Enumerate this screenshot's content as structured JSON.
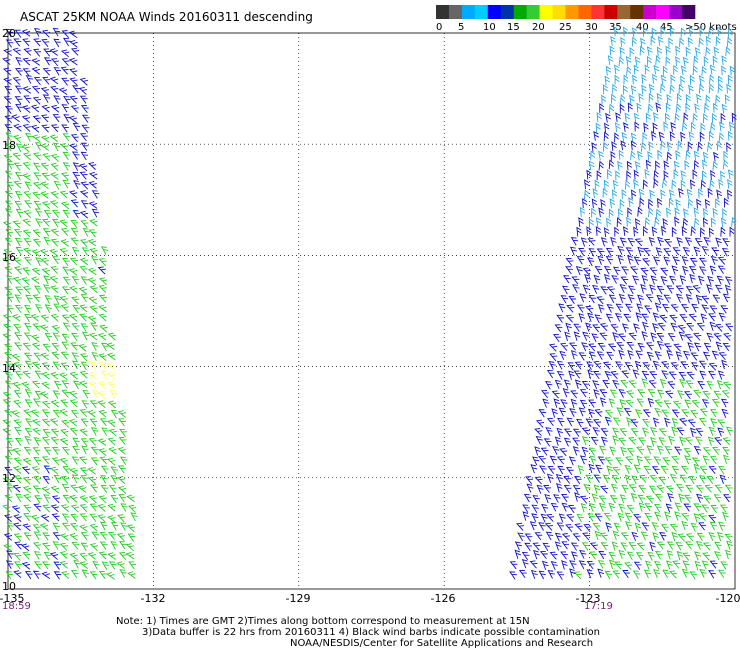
{
  "title": "ASCAT 25KM NOAA Winds 20160311 descending",
  "color_scale": {
    "colors": [
      "#333333",
      "#666666",
      "#00aaff",
      "#00ccff",
      "#0000ff",
      "#0033aa",
      "#00aa00",
      "#33cc33",
      "#ffff00",
      "#ffdd00",
      "#ff9900",
      "#ff6600",
      "#ff3333",
      "#cc0000",
      "#996633",
      "#663300",
      "#cc00cc",
      "#ff00ff",
      "#9900cc",
      "#440066"
    ],
    "labels": [
      "0",
      "5",
      "10",
      "15",
      "20",
      "25",
      "30",
      "35",
      "40",
      "45",
      ">50 knots"
    ]
  },
  "latitudes": [
    "20",
    "18",
    "16",
    "14",
    "12",
    "10"
  ],
  "longitudes": [
    "-135",
    "-132",
    "-129",
    "-126",
    "-123",
    "-120"
  ],
  "times": [
    "18:59",
    "17:19"
  ],
  "notes": [
    "Note: 1) Times are GMT 2)Times along bottom correspond to measurement at 15N",
    "3)Data buffer is 22 hrs from 20160311 4) Black wind barbs indicate possible contamination",
    "NOAA/NESDIS/Center for Satellite Applications and Research"
  ],
  "map": {
    "lat_range": [
      10,
      20
    ],
    "lon_range": [
      -135,
      -120
    ],
    "grid": "dotted",
    "swaths": [
      {
        "name": "west",
        "lon_edges_at_lat20": [
          -135,
          -133.5
        ],
        "lon_edges_at_lat10": [
          -135,
          -132.2
        ]
      },
      {
        "name": "east",
        "lon_edges_at_lat20": [
          -122.5,
          -120
        ],
        "lon_edges_at_lat10": [
          -124.6,
          -120
        ]
      }
    ],
    "wind_colors": {
      "blue": "#1010c8",
      "light_blue": "#2aa8e8",
      "green": "#22cc22",
      "yellow": "#ffff66"
    }
  }
}
